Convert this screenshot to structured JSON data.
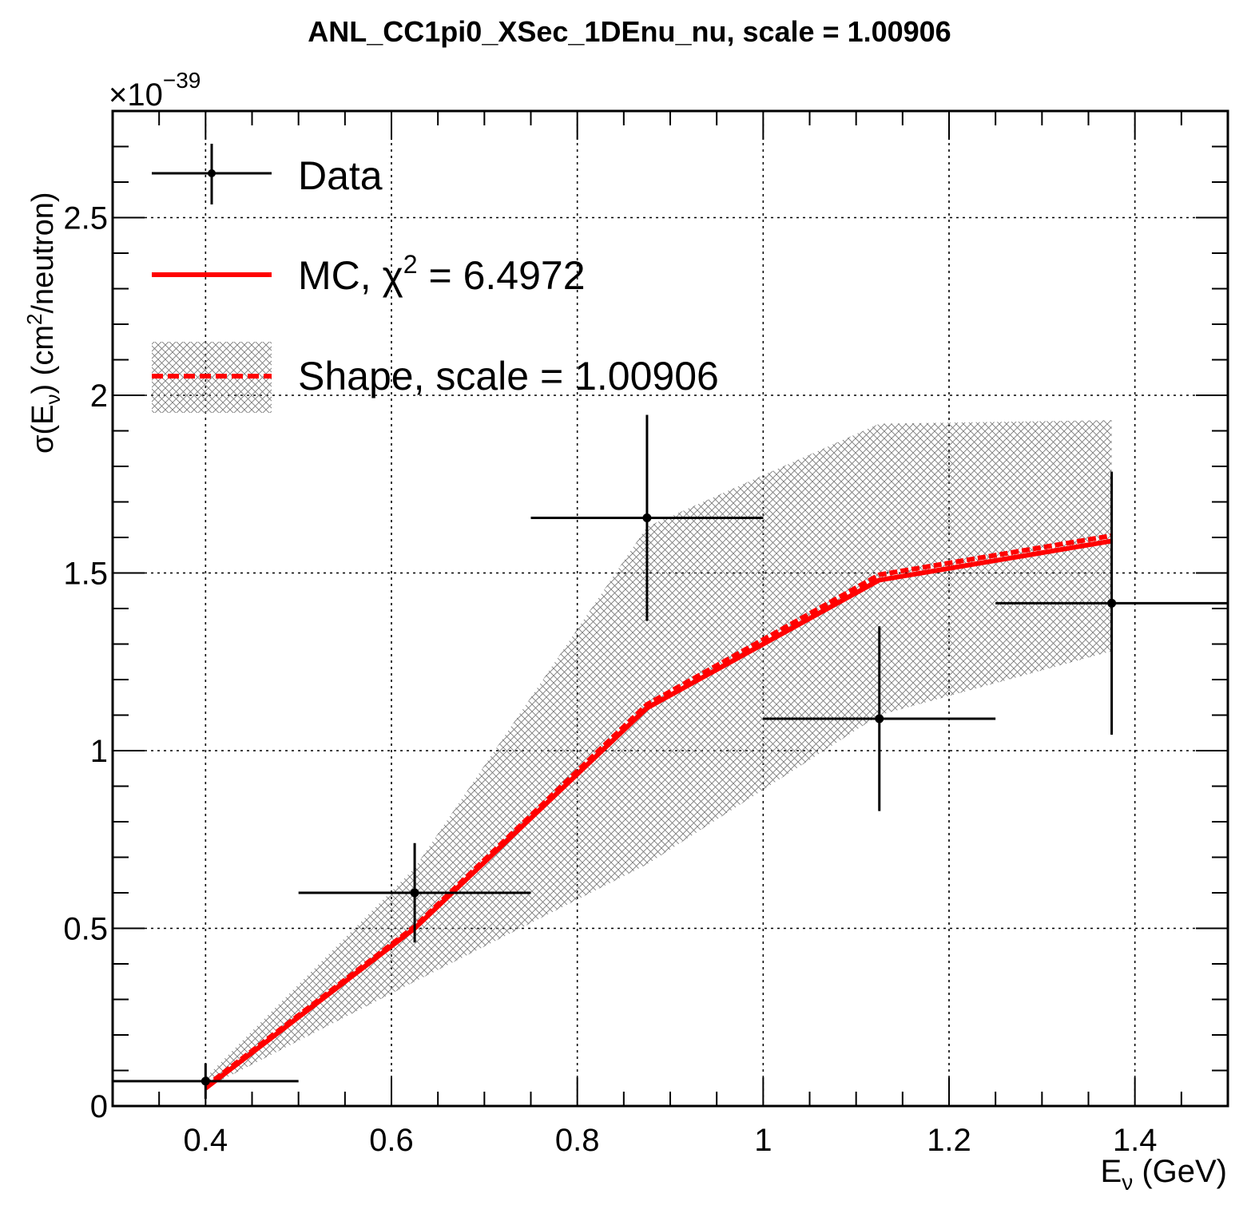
{
  "chart_data": {
    "type": "scatter",
    "title": "ANL_CC1pi0_XSec_1DEnu_nu, scale = 1.00906",
    "xlabel": {
      "main": "E",
      "sub": "ν",
      "tail": " (GeV)"
    },
    "ylabel": {
      "a": "σ(E",
      "sub": "ν",
      "b": ") (cm",
      "sup": "2",
      "c": "/neutron)"
    },
    "exponent": {
      "base": "×10",
      "power": "−39"
    },
    "xlim": [
      0.3,
      1.5
    ],
    "ylim": [
      0,
      2.8
    ],
    "xticks": [
      0.4,
      0.6,
      0.8,
      1.0,
      1.2,
      1.4
    ],
    "xtick_labels": [
      "0.4",
      "0.6",
      "0.8",
      "1",
      "1.2",
      "1.4"
    ],
    "yticks": [
      0,
      0.5,
      1.0,
      1.5,
      2.0,
      2.5
    ],
    "ytick_labels": [
      "0",
      "0.5",
      "1",
      "1.5",
      "2",
      "2.5"
    ],
    "grid": true,
    "legend_position": "top-left",
    "legend": {
      "data": "Data",
      "mc_prefix": "MC, ",
      "mc_chi": "χ",
      "mc_sup": "2",
      "mc_suffix": " = 6.4972",
      "shape": "Shape, scale = 1.00906"
    },
    "series": [
      {
        "name": "Data",
        "color": "#000000",
        "points": [
          {
            "x": 0.4,
            "xlo": 0.3,
            "xhi": 0.5,
            "y": 0.07,
            "yerr": 0.05
          },
          {
            "x": 0.625,
            "xlo": 0.5,
            "xhi": 0.75,
            "y": 0.6,
            "yerr": 0.14
          },
          {
            "x": 0.875,
            "xlo": 0.75,
            "xhi": 1.0,
            "y": 1.655,
            "yerr": 0.29
          },
          {
            "x": 1.125,
            "xlo": 1.0,
            "xhi": 1.25,
            "y": 1.09,
            "yerr": 0.26
          },
          {
            "x": 1.375,
            "xlo": 1.25,
            "xhi": 1.5,
            "y": 1.415,
            "yerr": 0.37
          }
        ]
      },
      {
        "name": "MC, χ2 = 6.4972",
        "color": "#ff0000",
        "x": [
          0.4,
          0.625,
          0.875,
          1.125,
          1.375
        ],
        "y": [
          0.05,
          0.5,
          1.12,
          1.48,
          1.59
        ]
      },
      {
        "name": "Shape, scale = 1.00906",
        "color": "#ff0000",
        "band_color": "#808080",
        "x": [
          0.4,
          0.625,
          0.875,
          1.125,
          1.375
        ],
        "y": [
          0.055,
          0.505,
          1.13,
          1.495,
          1.605
        ],
        "band_low": [
          0.05,
          0.35,
          0.68,
          1.1,
          1.28
        ],
        "band_high": [
          0.08,
          0.67,
          1.63,
          1.92,
          1.93
        ]
      }
    ]
  }
}
